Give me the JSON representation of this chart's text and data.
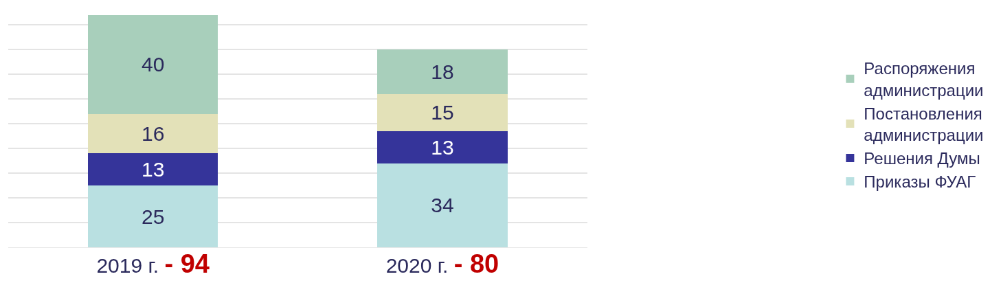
{
  "chart_data": {
    "type": "bar",
    "stacked": true,
    "categories": [
      "2019 г.",
      "2020 г."
    ],
    "annotations": [
      "- 94",
      "- 80"
    ],
    "series": [
      {
        "name": "Приказы ФУАГ",
        "color": "#b9e0e1",
        "values": [
          25,
          34
        ]
      },
      {
        "name": "Решения Думы",
        "color": "#35349a",
        "values": [
          13,
          13
        ]
      },
      {
        "name": "Постановления\nадминистрации",
        "color": "#e3e1b8",
        "values": [
          16,
          15
        ]
      },
      {
        "name": "Распоряжения\nадминистрации",
        "color": "#a8cfbb",
        "values": [
          40,
          18
        ]
      }
    ],
    "tick_labels": "x",
    "grid": "y",
    "data_labels": true,
    "legend": "right"
  }
}
